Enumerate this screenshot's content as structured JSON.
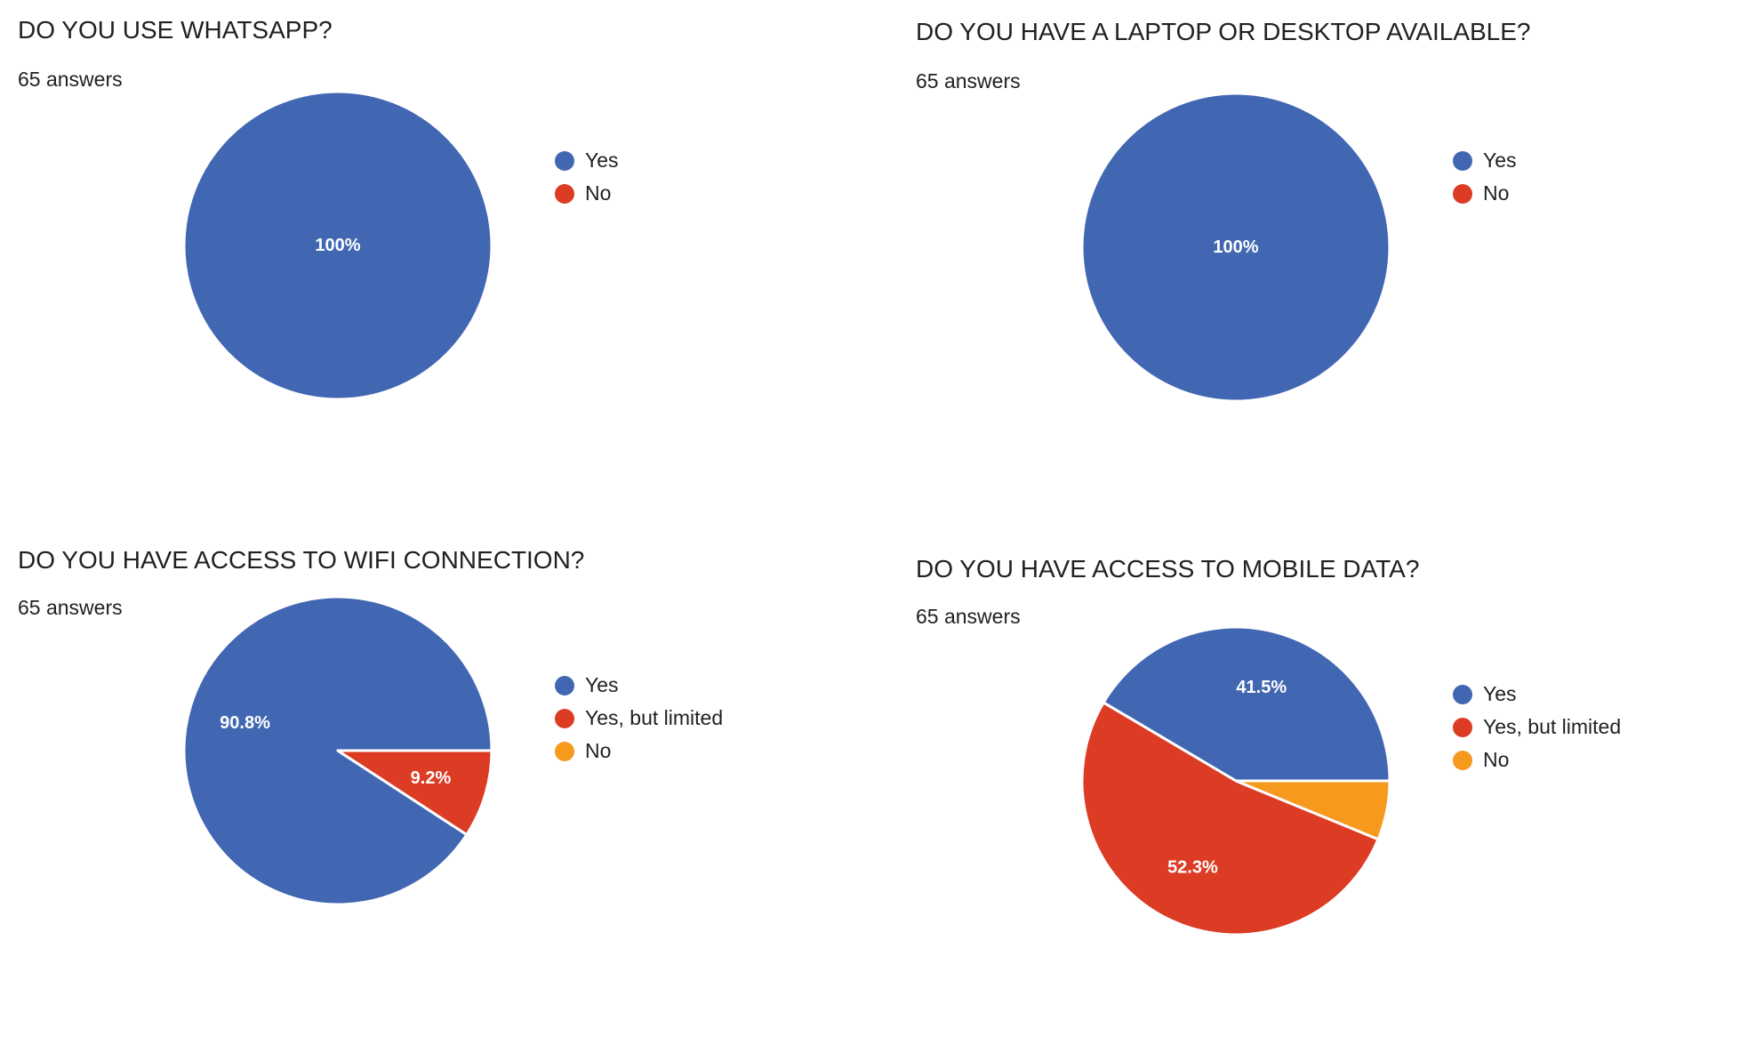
{
  "colors": {
    "yes": "#4267b2",
    "limited": "#dc3b24",
    "no": "#f6991c"
  },
  "chart_data": [
    {
      "type": "pie",
      "title": "DO YOU USE WHATSAPP?",
      "subtitle": "65 answers",
      "categories": [
        "Yes",
        "No"
      ],
      "values": [
        100,
        0
      ],
      "data_labels": [
        "100%",
        ""
      ],
      "colors": [
        "#4267b2",
        "#dc3b24"
      ],
      "legend": "right"
    },
    {
      "type": "pie",
      "title": "DO YOU HAVE A LAPTOP OR DESKTOP AVAILABLE?",
      "subtitle": "65 answers",
      "categories": [
        "Yes",
        "No"
      ],
      "values": [
        100,
        0
      ],
      "data_labels": [
        "100%",
        ""
      ],
      "colors": [
        "#4267b2",
        "#dc3b24"
      ],
      "legend": "right"
    },
    {
      "type": "pie",
      "title": "DO YOU HAVE ACCESS TO WIFI CONNECTION?",
      "subtitle": "65 answers",
      "categories": [
        "Yes",
        "Yes, but limited",
        "No"
      ],
      "values": [
        90.8,
        9.2,
        0
      ],
      "data_labels": [
        "90.8%",
        "9.2%",
        ""
      ],
      "colors": [
        "#4267b2",
        "#dc3b24",
        "#f6991c"
      ],
      "legend": "right"
    },
    {
      "type": "pie",
      "title": "DO YOU HAVE ACCESS TO MOBILE DATA?",
      "subtitle": "65 answers",
      "categories": [
        "Yes",
        "Yes, but limited",
        "No"
      ],
      "values": [
        41.5,
        52.3,
        6.2
      ],
      "data_labels": [
        "41.5%",
        "52.3%",
        ""
      ],
      "colors": [
        "#4267b2",
        "#dc3b24",
        "#f6991c"
      ],
      "legend": "right"
    }
  ]
}
